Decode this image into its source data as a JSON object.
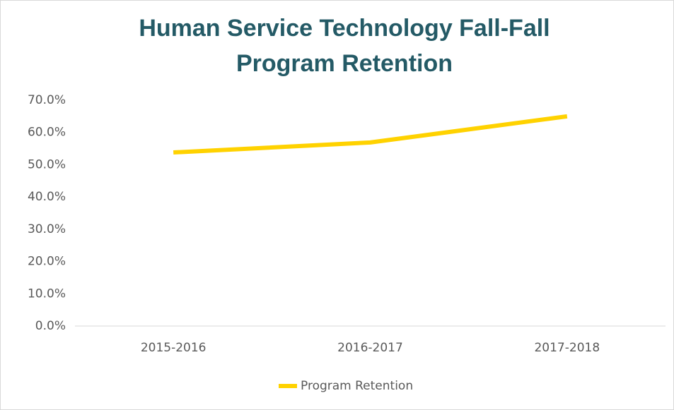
{
  "chart_data": {
    "type": "line",
    "title": "Human Service Technology Fall-Fall Program Retention",
    "categories": [
      "2015-2016",
      "2016-2017",
      "2017-2018"
    ],
    "series": [
      {
        "name": "Program Retention",
        "color": "#ffd200",
        "values": [
          53.8,
          56.9,
          65.0
        ]
      }
    ],
    "ylim": [
      0,
      70
    ],
    "yticks": [
      {
        "value": 0,
        "label": "0.0%"
      },
      {
        "value": 10,
        "label": "10.0%"
      },
      {
        "value": 20,
        "label": "20.0%"
      },
      {
        "value": 30,
        "label": "30.0%"
      },
      {
        "value": 40,
        "label": "40.0%"
      },
      {
        "value": 50,
        "label": "50.0%"
      },
      {
        "value": 60,
        "label": "60.0%"
      },
      {
        "value": 70,
        "label": "70.0%"
      }
    ],
    "grid": false,
    "legend": "bottom"
  }
}
